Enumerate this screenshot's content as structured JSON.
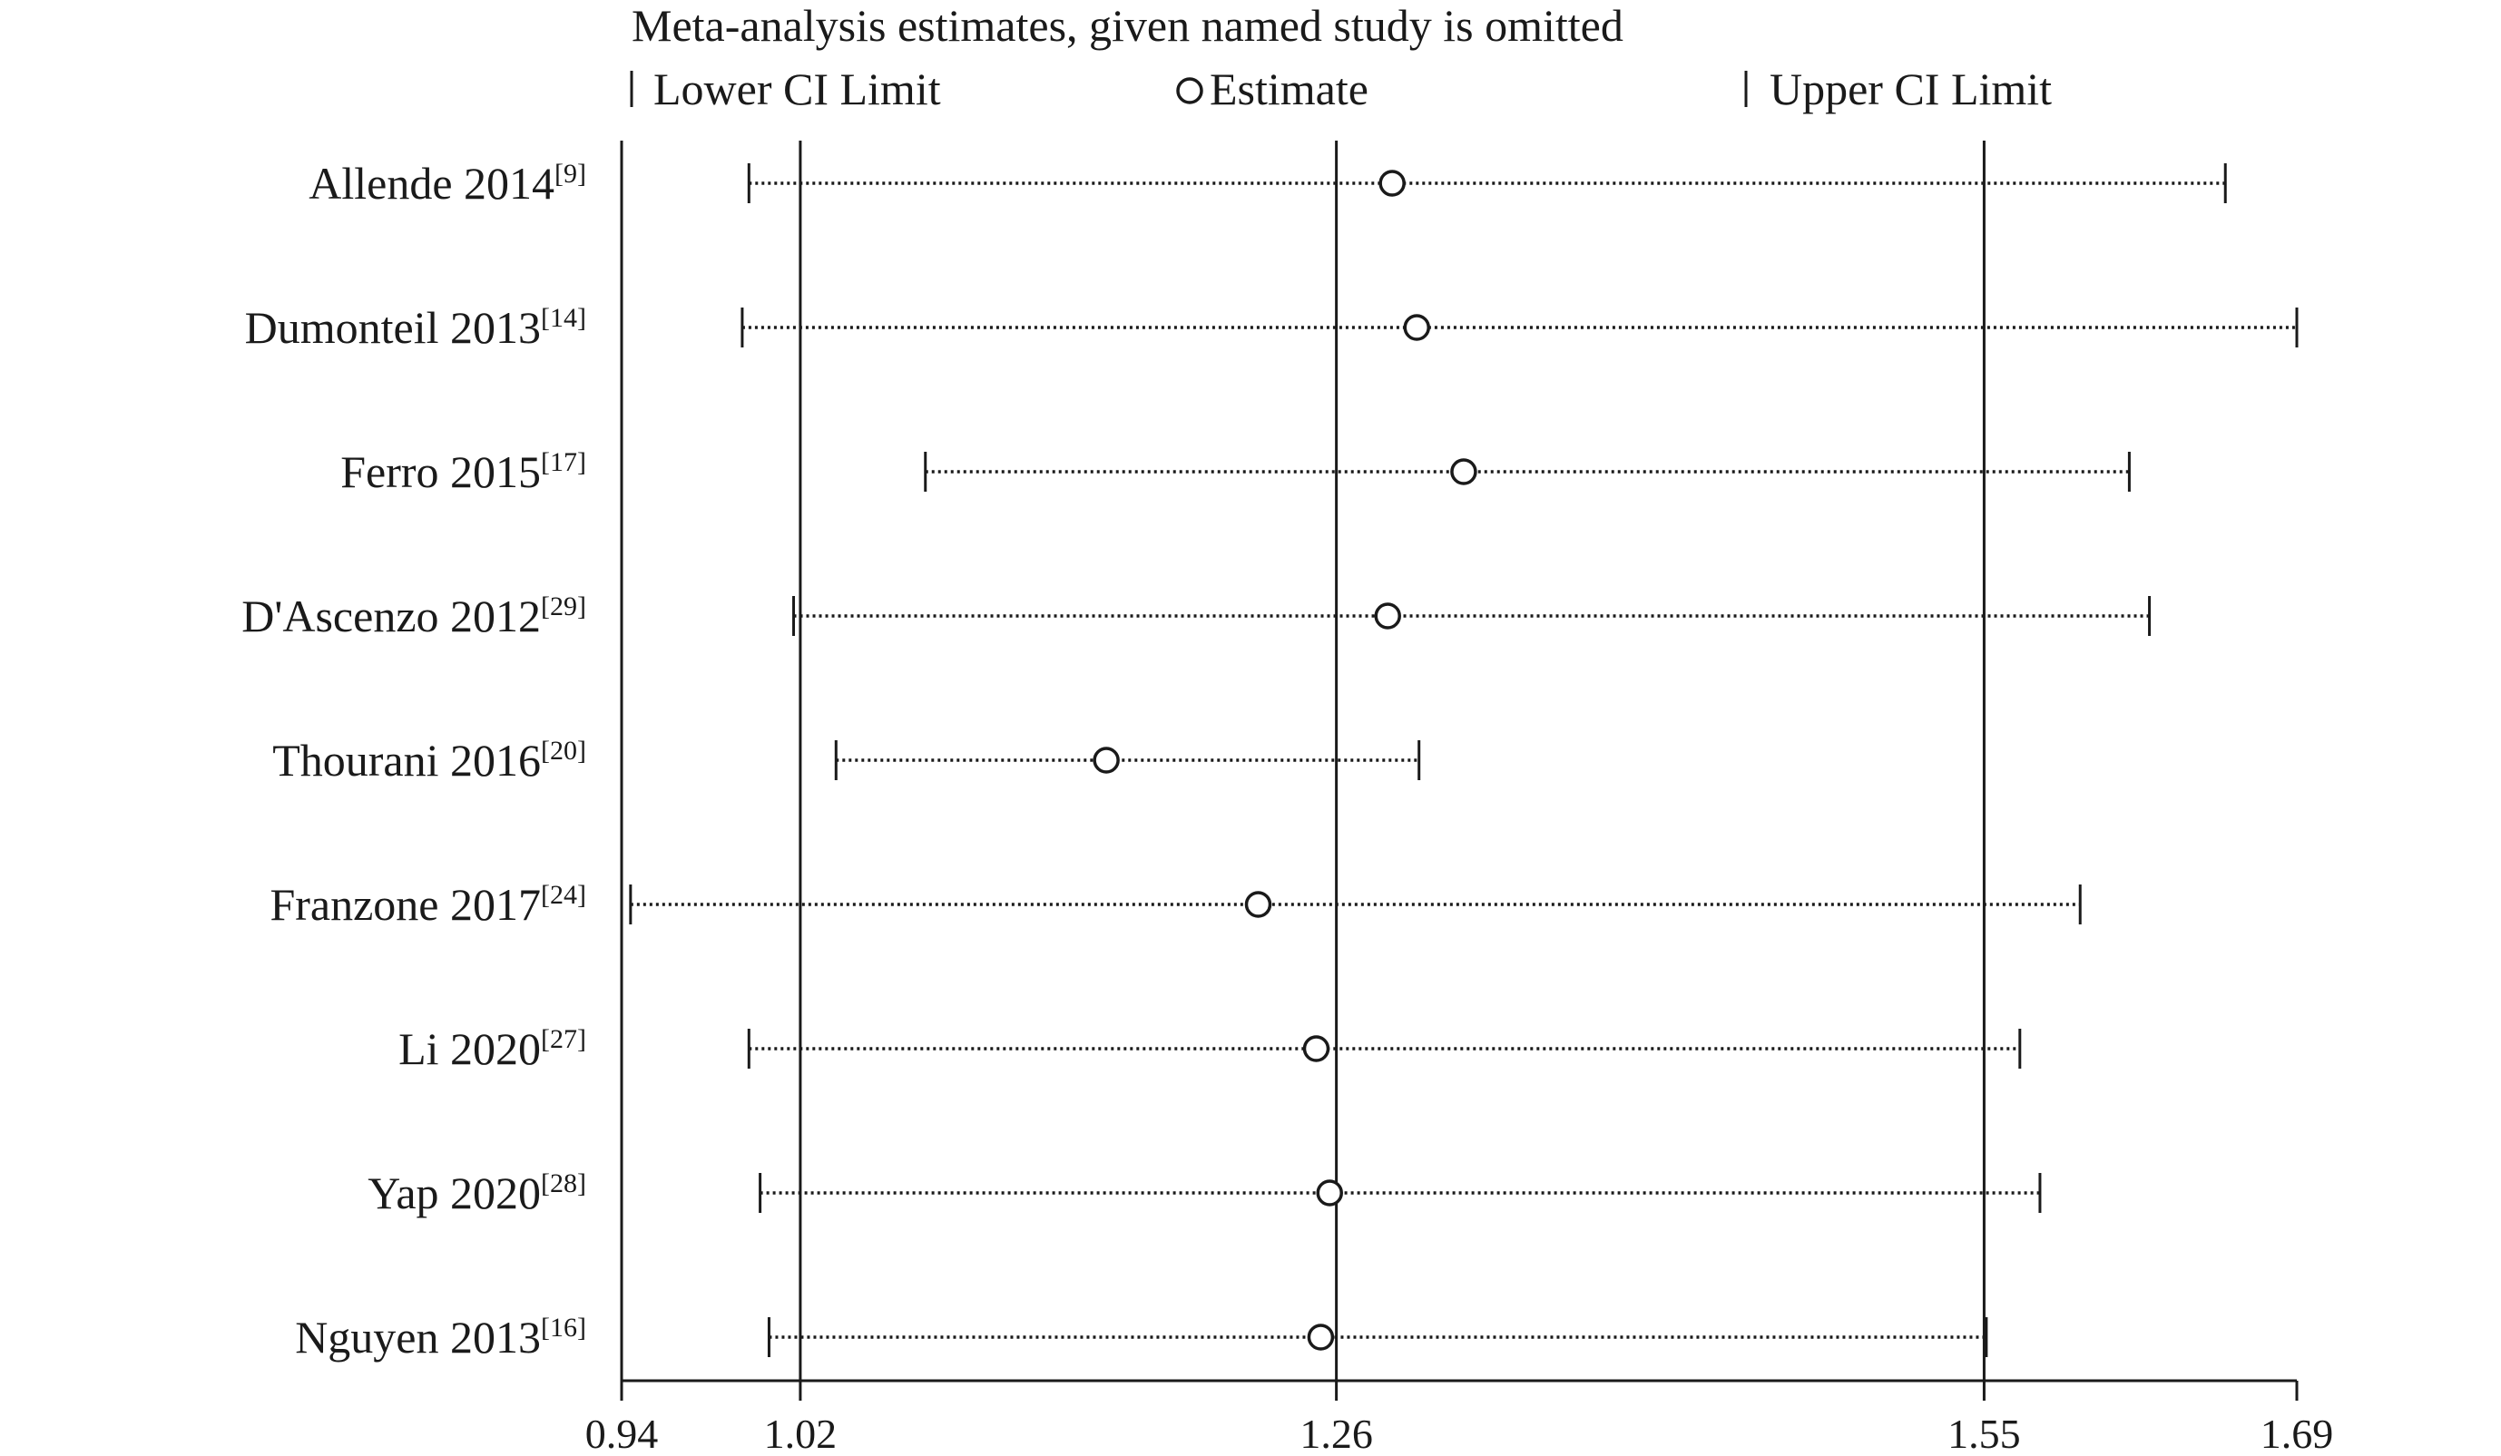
{
  "chart_data": {
    "type": "scatter",
    "title": "Meta-analysis estimates, given named study is omitted",
    "legend": {
      "lower": "Lower CI Limit",
      "estimate": "Estimate",
      "upper": "Upper CI Limit",
      "placement": "top"
    },
    "xlim": [
      0.94,
      1.69
    ],
    "xticks": [
      0.94,
      1.02,
      1.26,
      1.55,
      1.69
    ],
    "xtick_labels": [
      "0.94",
      "1.02",
      "1.26",
      "1.55",
      "1.69"
    ],
    "reference_lines": [
      1.02,
      1.26,
      1.55
    ],
    "studies": [
      {
        "name": "Allende 2014",
        "ref": "[9]",
        "lower": 0.997,
        "estimate": 1.285,
        "upper": 1.658
      },
      {
        "name": "Dumonteil 2013",
        "ref": "[14]",
        "lower": 0.994,
        "estimate": 1.296,
        "upper": 1.69
      },
      {
        "name": "Ferro 2015",
        "ref": "[17]",
        "lower": 1.076,
        "estimate": 1.317,
        "upper": 1.615
      },
      {
        "name": "D'Ascenzo 2012",
        "ref": "[29]",
        "lower": 1.017,
        "estimate": 1.283,
        "upper": 1.624
      },
      {
        "name": "Thourani 2016",
        "ref": "[20]",
        "lower": 1.036,
        "estimate": 1.157,
        "upper": 1.297
      },
      {
        "name": "Franzone 2017",
        "ref": "[24]",
        "lower": 0.944,
        "estimate": 1.225,
        "upper": 1.593
      },
      {
        "name": "Li 2020",
        "ref": "[27]",
        "lower": 0.997,
        "estimate": 1.251,
        "upper": 1.566
      },
      {
        "name": "Yap 2020",
        "ref": "[28]",
        "lower": 1.002,
        "estimate": 1.257,
        "upper": 1.575
      },
      {
        "name": "Nguyen 2013",
        "ref": "[16]",
        "lower": 1.006,
        "estimate": 1.253,
        "upper": 1.551
      }
    ]
  }
}
